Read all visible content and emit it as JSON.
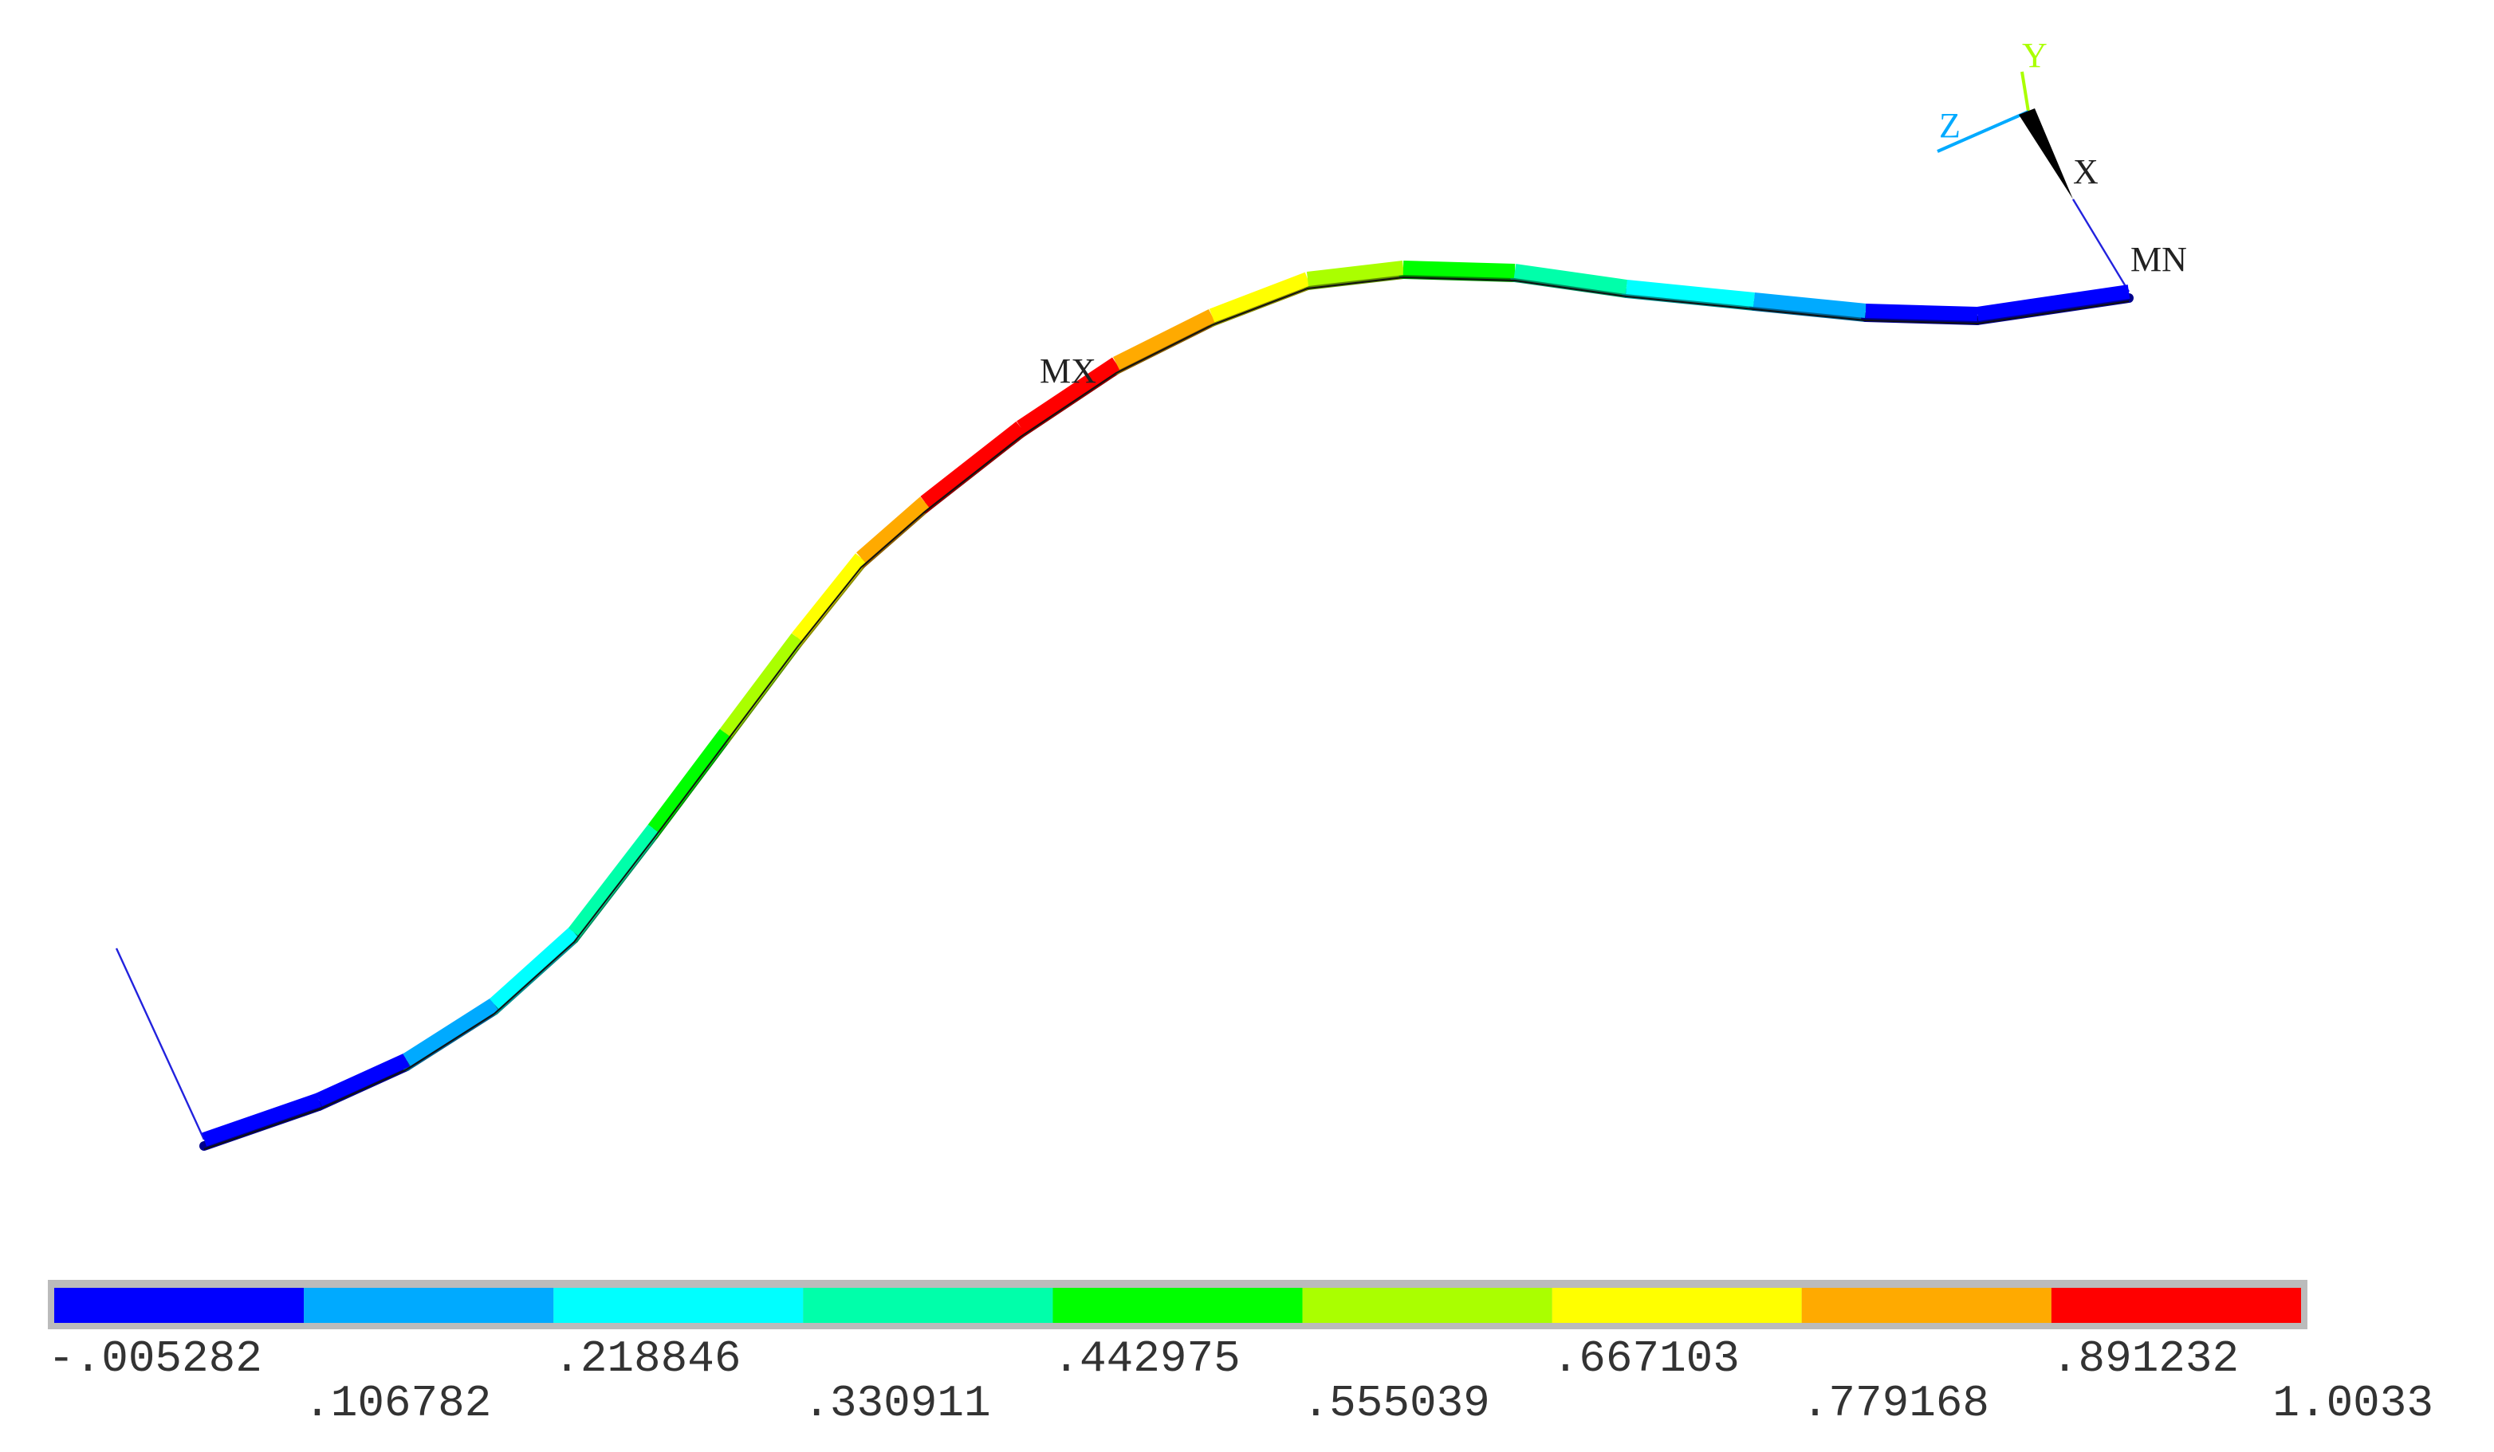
{
  "plot": {
    "markers": {
      "max": "MX",
      "min": "MN"
    },
    "triad": {
      "x": "X",
      "y": "Y",
      "z": "Z"
    },
    "legend": {
      "colors": [
        "#0000ff",
        "#00aaff",
        "#00ffff",
        "#00ffaa",
        "#00ff00",
        "#aaff00",
        "#ffff00",
        "#ffaa00",
        "#ff0000"
      ],
      "labels": [
        "-.005282",
        ".106782",
        ".218846",
        ".330911",
        ".442975",
        ".555039",
        ".667103",
        ".779168",
        ".891232",
        "1.0033"
      ]
    }
  }
}
